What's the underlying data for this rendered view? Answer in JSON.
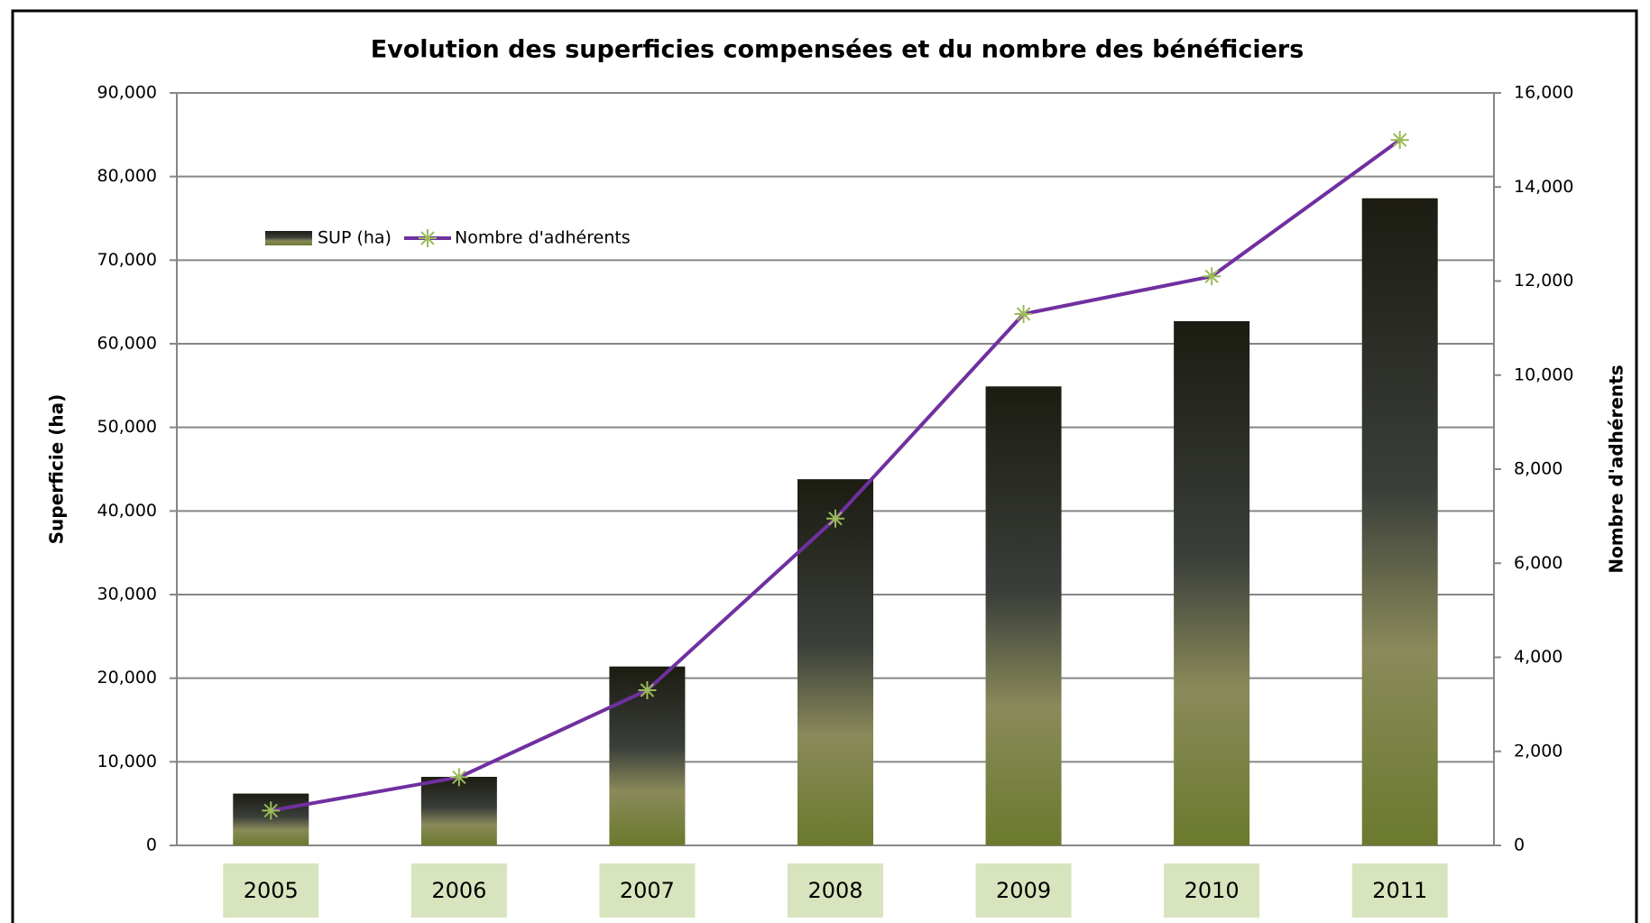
{
  "chart_data": {
    "type": "bar",
    "title": "Evolution des superficies compensées et du nombre des bénéficiers",
    "y_label": "Superficie (ha)",
    "y2_label": "Nombre d'adhérents",
    "categories": [
      "2005",
      "2006",
      "2007",
      "2008",
      "2009",
      "2010",
      "2011"
    ],
    "series": [
      {
        "name": "SUP (ha)",
        "type": "bar",
        "color": "#1c1c12",
        "values": [
          6200,
          8200,
          21400,
          43800,
          54900,
          62700,
          77400
        ]
      },
      {
        "name": "Nombre d'adhérents",
        "type": "line",
        "axis": "y2",
        "color": "#7030a0",
        "marker_color": "#9bbb59",
        "values": [
          740,
          1450,
          3300,
          6950,
          11300,
          12100,
          15000
        ]
      }
    ],
    "ylim": [
      0,
      90000
    ],
    "yticks": [
      0,
      {
        "value": 10000,
        "label": "10,000"
      },
      {
        "value": 20000,
        "label": "20,000"
      },
      {
        "value": 30000,
        "label": "30,000"
      },
      {
        "value": 40000,
        "label": "40,000"
      },
      {
        "value": 50000,
        "label": "50,000"
      },
      {
        "value": 60000,
        "label": "60,000"
      },
      {
        "value": 70000,
        "label": "70,000"
      },
      {
        "value": 80000,
        "label": "80,000"
      },
      {
        "value": 90000,
        "label": "90,000"
      }
    ],
    "y2lim": [
      0,
      16000
    ],
    "y2ticks": [
      0,
      {
        "value": 2000,
        "label": "2,000"
      },
      {
        "value": 4000,
        "label": "4,000"
      },
      {
        "value": 6000,
        "label": "6,000"
      },
      {
        "value": 8000,
        "label": "8,000"
      },
      {
        "value": 10000,
        "label": "10,000"
      },
      {
        "value": 12000,
        "label": "12,000"
      },
      {
        "value": 14000,
        "label": "14,000"
      },
      {
        "value": 16000,
        "label": "16,000"
      }
    ],
    "grid": true,
    "legend": "upper left"
  }
}
